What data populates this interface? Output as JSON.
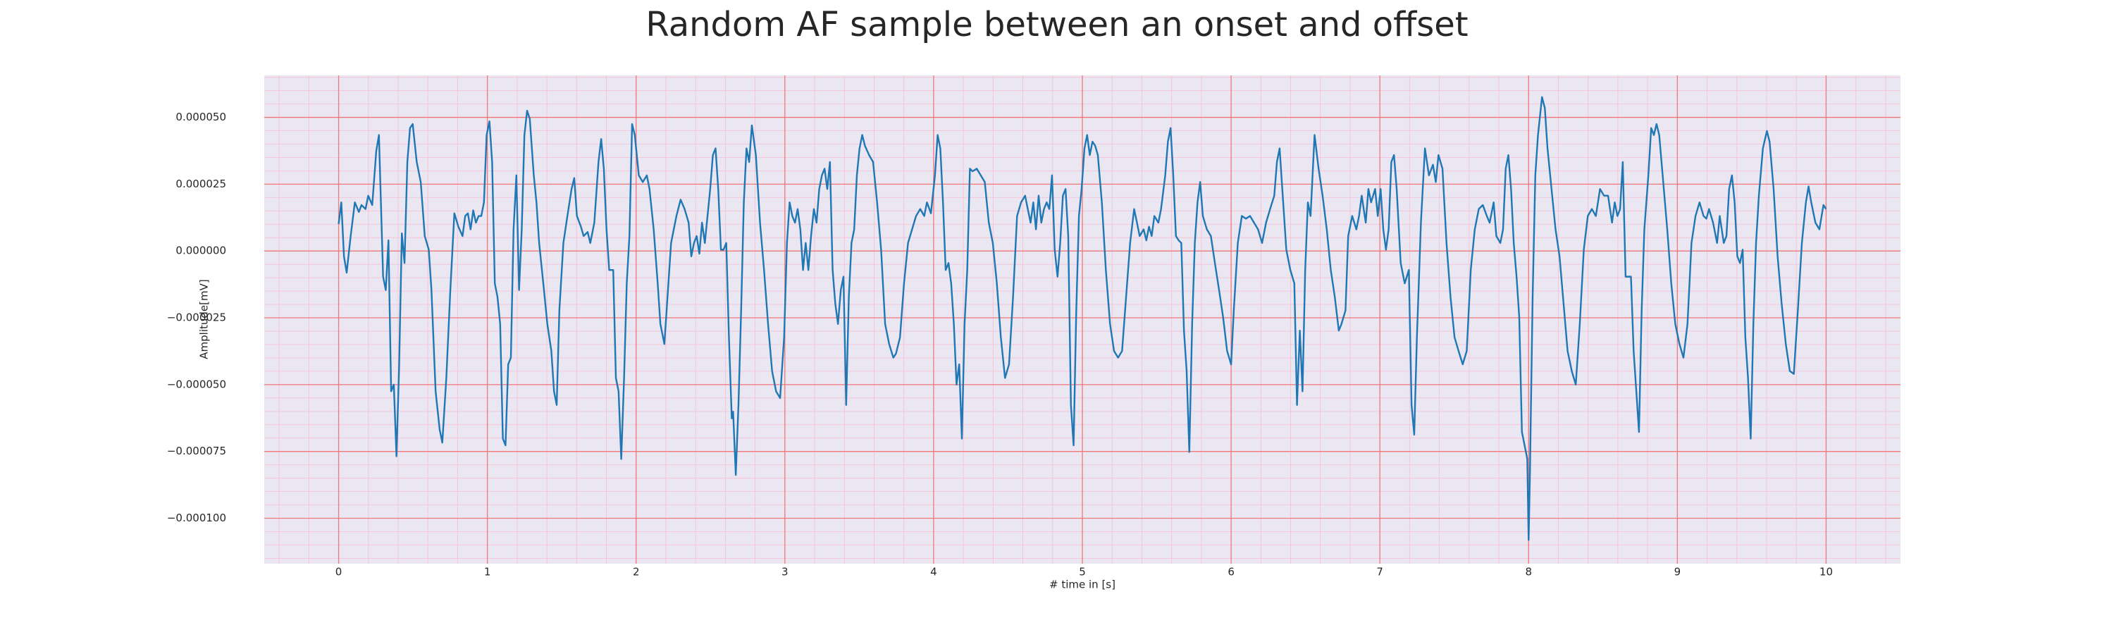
{
  "chart_data": {
    "type": "line",
    "title": "Random AF sample between an onset and offset",
    "xlabel": "# time in [s]",
    "ylabel": "Amplitude[mV]",
    "color": "#1f77b4",
    "grid": true,
    "minor_grid": true,
    "xlim": [
      -0.5,
      10.5
    ],
    "xticks": [
      0,
      1,
      2,
      3,
      4,
      5,
      6,
      7,
      8,
      9,
      10
    ],
    "ylim": [
      -0.000117,
      6.57e-05
    ],
    "yticks": [
      {
        "value": -0.0001,
        "label": "−0.000100"
      },
      {
        "value": -7.5e-05,
        "label": "−0.000075"
      },
      {
        "value": -5e-05,
        "label": "−0.000050"
      },
      {
        "value": -2.5e-05,
        "label": "−0.000025"
      },
      {
        "value": 0,
        "label": "0.000000"
      },
      {
        "value": 2.5e-05,
        "label": "0.000025"
      },
      {
        "value": 5e-05,
        "label": "0.000050"
      }
    ],
    "x": [
      0.0,
      0.018,
      0.036,
      0.054,
      0.081,
      0.109,
      0.136,
      0.154,
      0.181,
      0.199,
      0.226,
      0.253,
      0.271,
      0.299,
      0.317,
      0.335,
      0.353,
      0.371,
      0.389,
      0.407,
      0.425,
      0.443,
      0.462,
      0.48,
      0.498,
      0.525,
      0.552,
      0.579,
      0.606,
      0.624,
      0.652,
      0.679,
      0.697,
      0.724,
      0.751,
      0.778,
      0.805,
      0.833,
      0.851,
      0.869,
      0.887,
      0.905,
      0.923,
      0.941,
      0.959,
      0.977,
      0.995,
      1.014,
      1.032,
      1.05,
      1.068,
      1.086,
      1.104,
      1.122,
      1.14,
      1.158,
      1.176,
      1.195,
      1.213,
      1.231,
      1.249,
      1.267,
      1.285,
      1.312,
      1.33,
      1.348,
      1.376,
      1.403,
      1.43,
      1.448,
      1.466,
      1.484,
      1.511,
      1.538,
      1.566,
      1.584,
      1.602,
      1.629,
      1.647,
      1.674,
      1.692,
      1.719,
      1.747,
      1.765,
      1.783,
      1.801,
      1.819,
      1.846,
      1.864,
      1.882,
      1.9,
      1.919,
      1.937,
      1.955,
      1.973,
      1.991,
      2.018,
      2.045,
      2.072,
      2.09,
      2.118,
      2.145,
      2.163,
      2.19,
      2.208,
      2.235,
      2.271,
      2.299,
      2.326,
      2.353,
      2.371,
      2.389,
      2.407,
      2.425,
      2.443,
      2.462,
      2.48,
      2.498,
      2.516,
      2.534,
      2.552,
      2.57,
      2.588,
      2.606,
      2.624,
      2.643,
      2.652,
      2.67,
      2.688,
      2.706,
      2.724,
      2.742,
      2.76,
      2.778,
      2.805,
      2.833,
      2.86,
      2.887,
      2.914,
      2.941,
      2.968,
      2.995,
      3.014,
      3.032,
      3.05,
      3.068,
      3.086,
      3.104,
      3.122,
      3.14,
      3.158,
      3.176,
      3.195,
      3.213,
      3.231,
      3.249,
      3.267,
      3.285,
      3.303,
      3.321,
      3.339,
      3.357,
      3.376,
      3.394,
      3.412,
      3.43,
      3.448,
      3.466,
      3.484,
      3.502,
      3.52,
      3.538,
      3.566,
      3.593,
      3.62,
      3.647,
      3.674,
      3.701,
      3.729,
      3.747,
      3.774,
      3.801,
      3.828,
      3.855,
      3.882,
      3.91,
      3.937,
      3.955,
      3.982,
      4.009,
      4.027,
      4.045,
      4.063,
      4.081,
      4.1,
      4.118,
      4.136,
      4.154,
      4.172,
      4.19,
      4.208,
      4.226,
      4.244,
      4.262,
      4.29,
      4.317,
      4.344,
      4.371,
      4.398,
      4.425,
      4.452,
      4.48,
      4.507,
      4.534,
      4.561,
      4.588,
      4.615,
      4.633,
      4.652,
      4.67,
      4.688,
      4.706,
      4.724,
      4.742,
      4.76,
      4.778,
      4.796,
      4.814,
      4.833,
      4.851,
      4.869,
      4.887,
      4.905,
      4.923,
      4.941,
      4.959,
      4.977,
      4.995,
      5.014,
      5.032,
      5.05,
      5.068,
      5.086,
      5.104,
      5.131,
      5.158,
      5.186,
      5.213,
      5.24,
      5.267,
      5.294,
      5.321,
      5.348,
      5.367,
      5.385,
      5.412,
      5.43,
      5.448,
      5.466,
      5.484,
      5.511,
      5.529,
      5.557,
      5.575,
      5.593,
      5.611,
      5.629,
      5.647,
      5.665,
      5.683,
      5.701,
      5.719,
      5.738,
      5.756,
      5.774,
      5.792,
      5.81,
      5.837,
      5.864,
      5.891,
      5.919,
      5.946,
      5.973,
      6.0,
      6.018,
      6.045,
      6.072,
      6.1,
      6.127,
      6.154,
      6.181,
      6.208,
      6.235,
      6.262,
      6.29,
      6.308,
      6.326,
      6.344,
      6.371,
      6.398,
      6.425,
      6.443,
      6.462,
      6.48,
      6.498,
      6.516,
      6.534,
      6.561,
      6.588,
      6.615,
      6.643,
      6.67,
      6.697,
      6.724,
      6.742,
      6.769,
      6.787,
      6.814,
      6.842,
      6.86,
      6.878,
      6.905,
      6.923,
      6.941,
      6.968,
      6.986,
      7.005,
      7.023,
      7.041,
      7.059,
      7.077,
      7.095,
      7.113,
      7.14,
      7.167,
      7.195,
      7.213,
      7.231,
      7.249,
      7.276,
      7.303,
      7.33,
      7.357,
      7.376,
      7.394,
      7.421,
      7.448,
      7.475,
      7.502,
      7.529,
      7.557,
      7.584,
      7.611,
      7.638,
      7.665,
      7.692,
      7.719,
      7.738,
      7.765,
      7.783,
      7.81,
      7.828,
      7.846,
      7.864,
      7.882,
      7.9,
      7.919,
      7.937,
      7.955,
      7.973,
      7.991,
      8.0,
      8.009,
      8.027,
      8.045,
      8.063,
      8.09,
      8.109,
      8.127,
      8.154,
      8.181,
      8.208,
      8.235,
      8.262,
      8.29,
      8.317,
      8.344,
      8.371,
      8.398,
      8.425,
      8.452,
      8.48,
      8.507,
      8.534,
      8.561,
      8.579,
      8.597,
      8.615,
      8.633,
      8.652,
      8.67,
      8.688,
      8.706,
      8.724,
      8.742,
      8.76,
      8.778,
      8.805,
      8.824,
      8.842,
      8.86,
      8.878,
      8.905,
      8.932,
      8.959,
      8.986,
      9.014,
      9.041,
      9.068,
      9.095,
      9.122,
      9.149,
      9.176,
      9.195,
      9.213,
      9.24,
      9.267,
      9.285,
      9.312,
      9.33,
      9.348,
      9.367,
      9.385,
      9.403,
      9.421,
      9.439,
      9.457,
      9.475,
      9.493,
      9.511,
      9.529,
      9.548,
      9.575,
      9.602,
      9.62,
      9.647,
      9.674,
      9.701,
      9.729,
      9.756,
      9.783,
      9.81,
      9.837,
      9.864,
      9.882,
      9.9,
      9.928,
      9.955,
      9.982,
      10.0
    ],
    "values": [
      1.01e-05,
      1.82e-05,
      -2e-06,
      -8.1e-06,
      5.6e-06,
      1.82e-05,
      1.46e-05,
      1.72e-05,
      1.57e-05,
      2.07e-05,
      1.72e-05,
      3.74e-05,
      4.34e-05,
      -9.6e-06,
      -1.46e-05,
      4e-06,
      -5.25e-05,
      -5e-05,
      -7.68e-05,
      -4.24e-05,
      6.6e-06,
      -4.5e-06,
      3.33e-05,
      4.6e-05,
      4.75e-05,
      3.33e-05,
      2.58e-05,
      5.6e-06,
      5e-07,
      -1.46e-05,
      -5.25e-05,
      -6.67e-05,
      -7.17e-05,
      -4.75e-05,
      -1.46e-05,
      1.41e-05,
      9.1e-06,
      5.6e-06,
      1.31e-05,
      1.41e-05,
      8.1e-06,
      1.52e-05,
      1.06e-05,
      1.31e-05,
      1.31e-05,
      1.82e-05,
      4.34e-05,
      4.85e-05,
      3.33e-05,
      -1.21e-05,
      -1.72e-05,
      -2.73e-05,
      -7.02e-05,
      -7.27e-05,
      -4.24e-05,
      -3.99e-05,
      8.1e-06,
      2.83e-05,
      -1.46e-05,
      8.1e-06,
      4.34e-05,
      5.25e-05,
      4.95e-05,
      2.83e-05,
      1.82e-05,
      3e-06,
      -1.21e-05,
      -2.73e-05,
      -3.74e-05,
      -5.25e-05,
      -5.76e-05,
      -2.22e-05,
      3e-06,
      1.31e-05,
      2.32e-05,
      2.73e-05,
      1.31e-05,
      9.1e-06,
      5.6e-06,
      7.1e-06,
      3e-06,
      1.06e-05,
      3.33e-05,
      4.19e-05,
      3.08e-05,
      8.1e-06,
      -7.1e-06,
      -7.1e-06,
      -4.75e-05,
      -5.25e-05,
      -7.78e-05,
      -4.75e-05,
      -1.21e-05,
      5.6e-06,
      4.75e-05,
      4.34e-05,
      2.83e-05,
      2.58e-05,
      2.83e-05,
      2.32e-05,
      8.1e-06,
      -1.21e-05,
      -2.73e-05,
      -3.48e-05,
      -1.97e-05,
      3e-06,
      1.31e-05,
      1.92e-05,
      1.57e-05,
      1.06e-05,
      -2e-06,
      3e-06,
      5.6e-06,
      -1e-06,
      1.06e-05,
      3e-06,
      1.31e-05,
      2.32e-05,
      3.59e-05,
      3.84e-05,
      2.32e-05,
      5e-07,
      5e-07,
      3e-06,
      -3.23e-05,
      -6.26e-05,
      -6.01e-05,
      -8.38e-05,
      -5.76e-05,
      -2.22e-05,
      1.82e-05,
      3.84e-05,
      3.33e-05,
      4.7e-05,
      3.59e-05,
      1.06e-05,
      -7.1e-06,
      -2.73e-05,
      -4.49e-05,
      -5.25e-05,
      -5.5e-05,
      -3.23e-05,
      3e-06,
      1.82e-05,
      1.31e-05,
      1.06e-05,
      1.57e-05,
      8.1e-06,
      -7.1e-06,
      3e-06,
      -7.1e-06,
      5.6e-06,
      1.57e-05,
      1.06e-05,
      2.32e-05,
      2.83e-05,
      3.08e-05,
      2.32e-05,
      3.33e-05,
      -7.1e-06,
      -1.97e-05,
      -2.73e-05,
      -1.46e-05,
      -9.6e-06,
      -5.76e-05,
      -1.72e-05,
      3e-06,
      8.1e-06,
      2.83e-05,
      3.84e-05,
      4.34e-05,
      3.94e-05,
      3.59e-05,
      3.33e-05,
      1.82e-05,
      5e-07,
      -2.73e-05,
      -3.48e-05,
      -3.99e-05,
      -3.84e-05,
      -3.23e-05,
      -1.21e-05,
      3e-06,
      8.1e-06,
      1.31e-05,
      1.57e-05,
      1.31e-05,
      1.82e-05,
      1.41e-05,
      2.83e-05,
      4.34e-05,
      3.84e-05,
      1.82e-05,
      -7.1e-06,
      -4.5e-06,
      -1.21e-05,
      -2.73e-05,
      -5e-05,
      -4.24e-05,
      -7.02e-05,
      -2.73e-05,
      -7.1e-06,
      3.08e-05,
      2.98e-05,
      3.08e-05,
      2.83e-05,
      2.58e-05,
      1.06e-05,
      3e-06,
      -1.21e-05,
      -3.23e-05,
      -4.75e-05,
      -4.24e-05,
      -1.72e-05,
      1.31e-05,
      1.82e-05,
      2.07e-05,
      1.57e-05,
      1.06e-05,
      1.82e-05,
      8.1e-06,
      2.07e-05,
      1.06e-05,
      1.57e-05,
      1.82e-05,
      1.57e-05,
      2.83e-05,
      5e-07,
      -9.6e-06,
      3e-06,
      2.07e-05,
      2.32e-05,
      5.6e-06,
      -5.76e-05,
      -7.27e-05,
      -2.22e-05,
      1.31e-05,
      2.32e-05,
      3.84e-05,
      4.34e-05,
      3.59e-05,
      4.09e-05,
      3.94e-05,
      3.59e-05,
      1.82e-05,
      -7.1e-06,
      -2.73e-05,
      -3.74e-05,
      -3.99e-05,
      -3.74e-05,
      -1.72e-05,
      3e-06,
      1.57e-05,
      1.06e-05,
      5.6e-06,
      8.1e-06,
      4e-06,
      9.1e-06,
      5.6e-06,
      1.31e-05,
      1.06e-05,
      1.57e-05,
      2.83e-05,
      4.09e-05,
      4.6e-05,
      2.83e-05,
      5.6e-06,
      4e-06,
      3e-06,
      -2.98e-05,
      -4.49e-05,
      -7.52e-05,
      -2.73e-05,
      3e-06,
      1.82e-05,
      2.58e-05,
      1.31e-05,
      8.1e-06,
      5.6e-06,
      -4.5e-06,
      -1.46e-05,
      -2.47e-05,
      -3.74e-05,
      -4.24e-05,
      -2.22e-05,
      3e-06,
      1.31e-05,
      1.21e-05,
      1.31e-05,
      1.06e-05,
      8.1e-06,
      3e-06,
      1.06e-05,
      1.57e-05,
      2.07e-05,
      3.33e-05,
      3.84e-05,
      2.32e-05,
      5e-07,
      -7.1e-06,
      -1.21e-05,
      -5.76e-05,
      -2.98e-05,
      -5.25e-05,
      -7.1e-06,
      1.82e-05,
      1.31e-05,
      4.34e-05,
      3.08e-05,
      2.07e-05,
      8.1e-06,
      -7.1e-06,
      -1.72e-05,
      -2.98e-05,
      -2.73e-05,
      -2.22e-05,
      5.6e-06,
      1.31e-05,
      8.1e-06,
      1.31e-05,
      2.07e-05,
      1.06e-05,
      2.32e-05,
      1.82e-05,
      2.32e-05,
      1.31e-05,
      2.32e-05,
      8.1e-06,
      5e-07,
      8.1e-06,
      3.33e-05,
      3.59e-05,
      2.32e-05,
      -4.5e-06,
      -1.21e-05,
      -7.1e-06,
      -5.76e-05,
      -6.87e-05,
      -3.23e-05,
      1.06e-05,
      3.84e-05,
      2.83e-05,
      3.23e-05,
      2.58e-05,
      3.59e-05,
      3.08e-05,
      3e-06,
      -1.72e-05,
      -3.23e-05,
      -3.74e-05,
      -4.24e-05,
      -3.74e-05,
      -7.1e-06,
      8.1e-06,
      1.57e-05,
      1.72e-05,
      1.31e-05,
      1.06e-05,
      1.82e-05,
      5.6e-06,
      3e-06,
      8.1e-06,
      3.08e-05,
      3.59e-05,
      2.32e-05,
      3e-06,
      -9.6e-06,
      -2.47e-05,
      -6.77e-05,
      -7.27e-05,
      -7.78e-05,
      -0.0001081,
      -8.28e-05,
      -1.72e-05,
      2.83e-05,
      4.34e-05,
      5.76e-05,
      5.35e-05,
      3.84e-05,
      2.32e-05,
      8.1e-06,
      -2e-06,
      -1.97e-05,
      -3.74e-05,
      -4.49e-05,
      -5e-05,
      -2.73e-05,
      5e-07,
      1.31e-05,
      1.57e-05,
      1.31e-05,
      2.32e-05,
      2.07e-05,
      2.07e-05,
      1.06e-05,
      1.82e-05,
      1.31e-05,
      1.57e-05,
      3.33e-05,
      -9.6e-06,
      -9.6e-06,
      -9.6e-06,
      -3.74e-05,
      -5.25e-05,
      -6.77e-05,
      -2.22e-05,
      8.1e-06,
      2.83e-05,
      4.6e-05,
      4.34e-05,
      4.75e-05,
      4.34e-05,
      2.58e-05,
      8.1e-06,
      -1.21e-05,
      -2.73e-05,
      -3.48e-05,
      -3.99e-05,
      -2.73e-05,
      3e-06,
      1.31e-05,
      1.82e-05,
      1.31e-05,
      1.21e-05,
      1.57e-05,
      1.06e-05,
      3e-06,
      1.31e-05,
      3e-06,
      5.6e-06,
      2.32e-05,
      2.83e-05,
      1.82e-05,
      -2e-06,
      -4.5e-06,
      5e-07,
      -3.23e-05,
      -4.75e-05,
      -7.02e-05,
      -2.73e-05,
      3e-06,
      2.07e-05,
      3.84e-05,
      4.49e-05,
      4.09e-05,
      2.32e-05,
      -2e-06,
      -1.97e-05,
      -3.48e-05,
      -4.49e-05,
      -4.6e-05,
      -2.22e-05,
      3e-06,
      1.82e-05,
      2.42e-05,
      1.82e-05,
      1.06e-05,
      8.1e-06,
      1.72e-05,
      1.57e-05
    ]
  }
}
